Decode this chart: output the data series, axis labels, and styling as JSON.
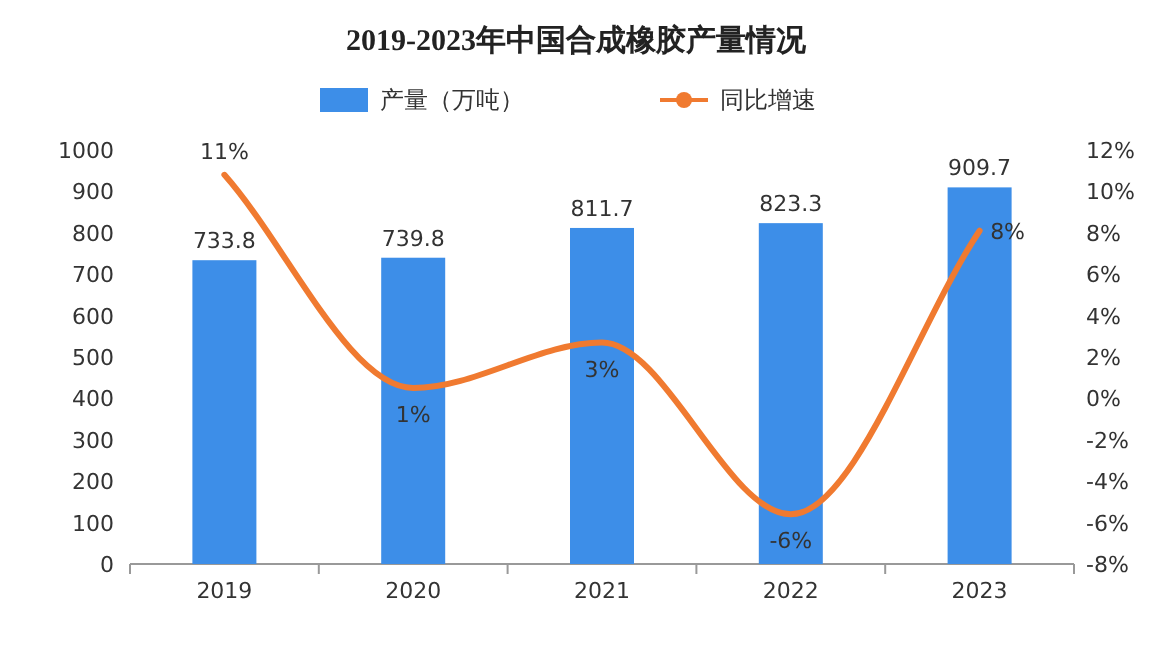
{
  "chart_data": {
    "type": "bar",
    "title": "2019-2023年中国合成橡胶产量情况",
    "categories": [
      "2019",
      "2020",
      "2021",
      "2022",
      "2023"
    ],
    "series": [
      {
        "name": "产量（万吨）",
        "color": "#3d8ee8",
        "values": [
          733.8,
          739.8,
          811.7,
          823.3,
          909.7
        ],
        "value_labels": [
          "733.8",
          "739.8",
          "811.7",
          "823.3",
          "909.7"
        ]
      },
      {
        "name": "同比增速",
        "type": "line",
        "axis": "y2",
        "color": "#f07a30",
        "values": [
          10.8,
          0.5,
          2.7,
          -5.6,
          8.1
        ],
        "value_labels": [
          "11%",
          "1%",
          "3%",
          "-6%",
          "8%"
        ]
      }
    ],
    "ylim": [
      0,
      1000
    ],
    "yticks": [
      0,
      100,
      200,
      300,
      400,
      500,
      600,
      700,
      800,
      900,
      1000
    ],
    "y2lim": [
      -8,
      12
    ],
    "y2ticks": [
      {
        "value": -8,
        "label": "-8%"
      },
      {
        "value": -6,
        "label": "-6%"
      },
      {
        "value": -4,
        "label": "-4%"
      },
      {
        "value": -2,
        "label": "-2%"
      },
      {
        "value": 0,
        "label": "0%"
      },
      {
        "value": 2,
        "label": "2%"
      },
      {
        "value": 4,
        "label": "4%"
      },
      {
        "value": 6,
        "label": "6%"
      },
      {
        "value": 8,
        "label": "8%"
      },
      {
        "value": 10,
        "label": "10%"
      },
      {
        "value": 12,
        "label": "12%"
      }
    ],
    "legend": "top",
    "grid": false,
    "line_style": "solid"
  }
}
